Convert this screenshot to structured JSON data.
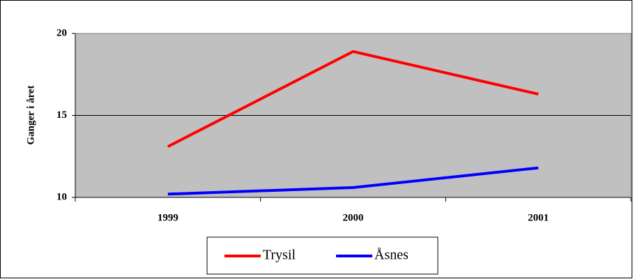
{
  "chart_data": {
    "type": "line",
    "y_label": "Ganger i året",
    "categories": [
      "1999",
      "2000",
      "2001"
    ],
    "series": [
      {
        "name": "Trysil",
        "color": "#ff0000",
        "values": [
          13.1,
          18.9,
          16.3
        ]
      },
      {
        "name": "Åsnes",
        "color": "#0000ff",
        "values": [
          10.2,
          10.6,
          11.8
        ]
      }
    ],
    "ylim": [
      10,
      20
    ],
    "yticks": [
      10,
      15,
      20
    ],
    "grid": true,
    "legend": "bottom"
  }
}
